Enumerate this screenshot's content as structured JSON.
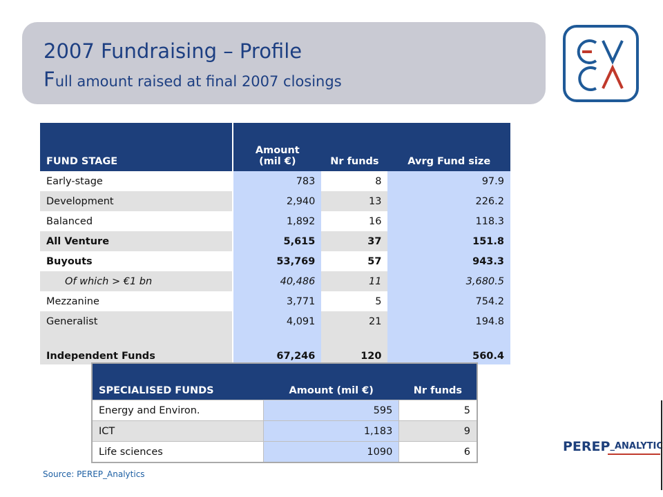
{
  "header": {
    "title": "2007 Fundraising – Profile",
    "subtitle_initial": "F",
    "subtitle_rest": "ull amount raised at final 2007 closings"
  },
  "logo": {
    "text": "EVCA",
    "colors": {
      "blue": "#1f5a98",
      "red": "#c0392b"
    }
  },
  "fund_table": {
    "headers": [
      "FUND STAGE",
      "Amount (mil €)",
      "Nr funds",
      "Avrg Fund size"
    ],
    "rows": [
      [
        "Early-stage",
        "783",
        "8",
        "97.9"
      ],
      [
        "Development",
        "2,940",
        "13",
        "226.2"
      ],
      [
        "Balanced",
        "1,892",
        "16",
        "118.3"
      ],
      [
        "All Venture",
        "5,615",
        "37",
        "151.8"
      ],
      [
        "Buyouts",
        "53,769",
        "57",
        "943.3"
      ],
      [
        "Of which > €1 bn",
        "40,486",
        "11",
        "3,680.5"
      ],
      [
        "Mezzanine",
        "3,771",
        "5",
        "754.2"
      ],
      [
        "Generalist",
        "4,091",
        "21",
        "194.8"
      ],
      [
        "Independent Funds",
        "67,246",
        "120",
        "560.4"
      ]
    ]
  },
  "specialised_table": {
    "headers": [
      "SPECIALISED FUNDS",
      "Amount (mil €)",
      "Nr funds"
    ],
    "rows": [
      [
        "Energy and Environ.",
        "595",
        "5"
      ],
      [
        "ICT",
        "1,183",
        "9"
      ],
      [
        "Life sciences",
        "1090",
        "6"
      ]
    ]
  },
  "branding": {
    "perep": "PEREP",
    "analytics": "_ANALYTICS"
  },
  "source": "Source: PEREP_Analytics",
  "colors": {
    "header_blue": "#1d3f7b",
    "cell_blue": "#c6d8fb",
    "cell_grey": "#e1e1e1",
    "title_bg": "#c9cad3"
  }
}
